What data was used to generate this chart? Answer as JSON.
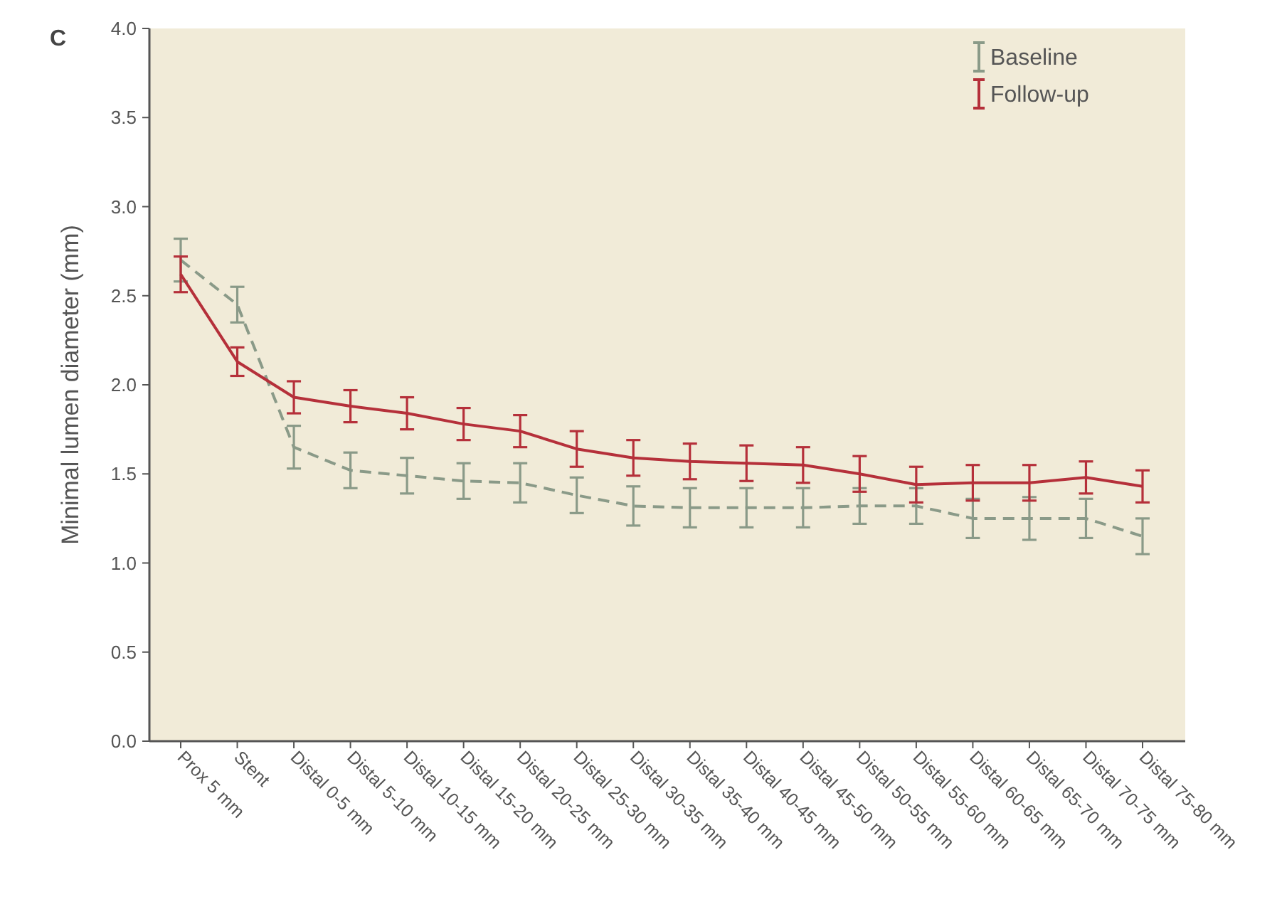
{
  "chart_data": {
    "type": "line",
    "ylabel": "Minimal lumen diameter (mm)",
    "annotations": [
      "C"
    ],
    "categories": [
      "Prox 5 mm",
      "Stent",
      "Distal 0-5 mm",
      "Distal 5-10 mm",
      "Distal 10-15 mm",
      "Distal 15-20 mm",
      "Distal 20-25 mm",
      "Distal 25-30 mm",
      "Distal 30-35 mm",
      "Distal 35-40 mm",
      "Distal 40-45 mm",
      "Distal 45-50 mm",
      "Distal 50-55 mm",
      "Distal 55-60 mm",
      "Distal 60-65 mm",
      "Distal 65-70 mm",
      "Distal 70-75 mm",
      "Distal 75-80 mm"
    ],
    "series": [
      {
        "name": "Baseline",
        "color": "#8a9a88",
        "line_style": "dashed",
        "values": [
          2.7,
          2.45,
          1.65,
          1.52,
          1.49,
          1.46,
          1.45,
          1.38,
          1.32,
          1.31,
          1.31,
          1.31,
          1.32,
          1.32,
          1.25,
          1.25,
          1.25,
          1.15
        ],
        "errors": [
          0.12,
          0.1,
          0.12,
          0.1,
          0.1,
          0.1,
          0.11,
          0.1,
          0.11,
          0.11,
          0.11,
          0.11,
          0.1,
          0.1,
          0.11,
          0.12,
          0.11,
          0.1
        ]
      },
      {
        "name": "Follow-up",
        "color": "#b5303a",
        "line_style": "solid",
        "values": [
          2.62,
          2.13,
          1.93,
          1.88,
          1.84,
          1.78,
          1.74,
          1.64,
          1.59,
          1.57,
          1.56,
          1.55,
          1.5,
          1.44,
          1.45,
          1.45,
          1.48,
          1.43
        ],
        "errors": [
          0.1,
          0.08,
          0.09,
          0.09,
          0.09,
          0.09,
          0.09,
          0.1,
          0.1,
          0.1,
          0.1,
          0.1,
          0.1,
          0.1,
          0.1,
          0.1,
          0.09,
          0.09
        ]
      }
    ],
    "ylim": [
      0,
      4
    ],
    "yticks": [
      {
        "value": 0,
        "label": "0.0"
      },
      {
        "value": 0.5,
        "label": "0.5"
      },
      {
        "value": 1,
        "label": "1.0"
      },
      {
        "value": 1.5,
        "label": "1.5"
      },
      {
        "value": 2,
        "label": "2.0"
      },
      {
        "value": 2.5,
        "label": "2.5"
      },
      {
        "value": 3,
        "label": "3.0"
      },
      {
        "value": 3.5,
        "label": "3.5"
      },
      {
        "value": 4,
        "label": "4.0"
      }
    ],
    "legend": "top right",
    "grid": false,
    "marker": "none"
  }
}
